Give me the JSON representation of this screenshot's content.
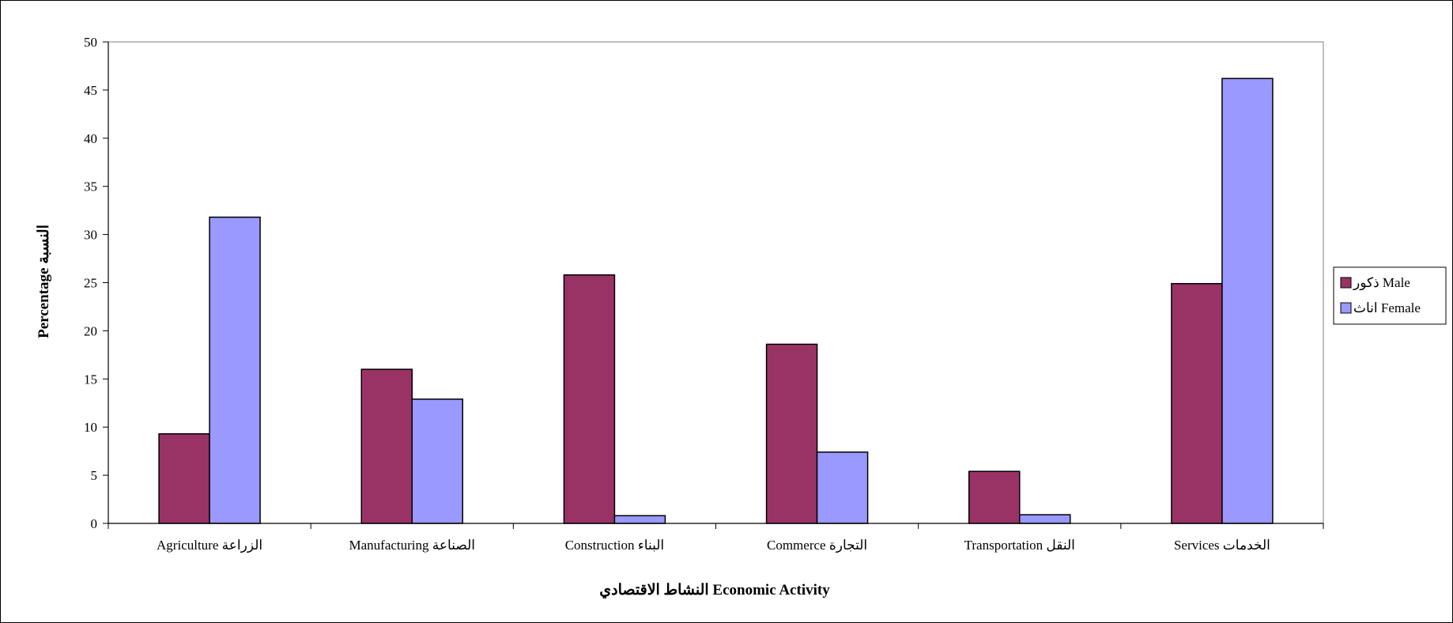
{
  "chart_data": {
    "type": "bar",
    "title": "",
    "xlabel": "النشاط الاقتصادي Economic Activity",
    "ylabel": "Percentage النسبة",
    "ylim": [
      0,
      50
    ],
    "yticks": [
      "0",
      "5",
      "10",
      "15",
      "20",
      "25",
      "30",
      "35",
      "40",
      "45",
      "50"
    ],
    "grid": false,
    "legend_position": "right",
    "categories": [
      "Agriculture  الزراعة",
      "Manufacturing الصناعة",
      "Construction البناء",
      "Commerce التجارة",
      "Transportation النقل",
      "Services الخدمات"
    ],
    "series": [
      {
        "name": "ذكور Male",
        "color": "#993366",
        "values": [
          9.3,
          16.0,
          25.8,
          18.6,
          5.4,
          24.9
        ]
      },
      {
        "name": "اناث Female",
        "color": "#9999ff",
        "values": [
          31.8,
          12.9,
          0.8,
          7.4,
          0.9,
          46.2
        ]
      }
    ]
  }
}
